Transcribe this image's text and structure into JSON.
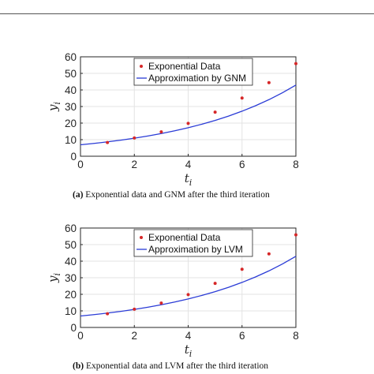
{
  "chart_data": [
    {
      "type": "scatter",
      "panel_label": "(a)",
      "caption": "Exponential data and GNM after the third iteration",
      "xlabel_base": "t",
      "xlabel_sub": "i",
      "ylabel_base": "y",
      "ylabel_sub": "i",
      "xlim": [
        0,
        8
      ],
      "ylim": [
        0,
        60
      ],
      "xticks": [
        0,
        2,
        4,
        6,
        8
      ],
      "yticks": [
        0,
        10,
        20,
        30,
        40,
        50,
        60
      ],
      "grid": true,
      "legend": "top-center",
      "series": [
        {
          "name": "Exponential Data",
          "kind": "points",
          "color": "#d62728",
          "x": [
            1,
            2,
            3,
            4,
            5,
            6,
            7,
            8
          ],
          "y": [
            8.3,
            11.0,
            14.7,
            19.8,
            26.6,
            35.1,
            44.4,
            55.9
          ]
        },
        {
          "name": "Approximation by GNM",
          "kind": "line",
          "color": "#2a3bd6",
          "x": [
            0,
            0.5,
            1,
            1.5,
            2,
            2.5,
            3,
            3.5,
            4,
            4.5,
            5,
            5.5,
            6,
            6.5,
            7,
            7.5,
            8
          ],
          "y": [
            6.9,
            7.7,
            8.6,
            9.7,
            10.9,
            12.2,
            13.7,
            15.4,
            17.2,
            19.3,
            21.6,
            24.2,
            27.2,
            30.5,
            34.2,
            38.3,
            42.9
          ]
        }
      ]
    },
    {
      "type": "scatter",
      "panel_label": "(b)",
      "caption": "Exponential data and LVM after the third iteration",
      "xlabel_base": "t",
      "xlabel_sub": "i",
      "ylabel_base": "y",
      "ylabel_sub": "i",
      "xlim": [
        0,
        8
      ],
      "ylim": [
        0,
        60
      ],
      "xticks": [
        0,
        2,
        4,
        6,
        8
      ],
      "yticks": [
        0,
        10,
        20,
        30,
        40,
        50,
        60
      ],
      "grid": true,
      "legend": "top-center",
      "series": [
        {
          "name": "Exponential Data",
          "kind": "points",
          "color": "#d62728",
          "x": [
            1,
            2,
            3,
            4,
            5,
            6,
            7,
            8
          ],
          "y": [
            8.3,
            11.0,
            14.7,
            19.8,
            26.6,
            35.1,
            44.4,
            55.9
          ]
        },
        {
          "name": "Approximation by LVM",
          "kind": "line",
          "color": "#2a3bd6",
          "x": [
            0,
            0.5,
            1,
            1.5,
            2,
            2.5,
            3,
            3.5,
            4,
            4.5,
            5,
            5.5,
            6,
            6.5,
            7,
            7.5,
            8
          ],
          "y": [
            6.9,
            7.7,
            8.6,
            9.7,
            10.9,
            12.2,
            13.7,
            15.4,
            17.2,
            19.3,
            21.6,
            24.2,
            27.2,
            30.5,
            34.2,
            38.3,
            42.9
          ]
        }
      ]
    }
  ]
}
